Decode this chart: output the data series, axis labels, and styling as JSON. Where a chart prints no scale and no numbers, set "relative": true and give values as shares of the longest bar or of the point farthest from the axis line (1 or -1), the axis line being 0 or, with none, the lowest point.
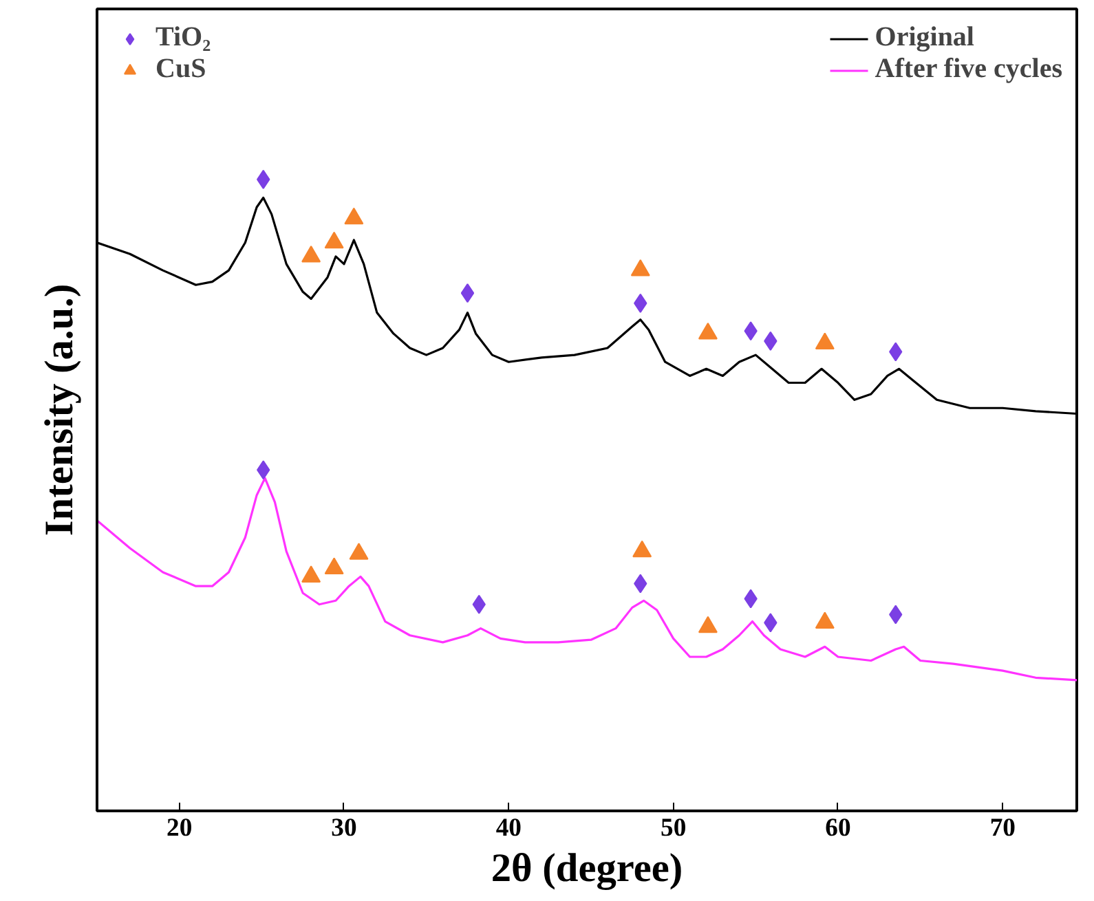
{
  "chart_data": {
    "type": "line",
    "xlabel": "2θ (degree)",
    "ylabel": "Intensity (a.u.)",
    "relative": true,
    "xlim": [
      15,
      74.5
    ],
    "xticks": [
      20,
      30,
      40,
      50,
      60,
      70
    ],
    "grid": false,
    "legend": "top",
    "series": [
      {
        "name": "Original",
        "color": "#000000",
        "x": [
          15,
          17,
          19,
          21,
          22,
          23,
          24,
          24.7,
          25.1,
          25.6,
          26.5,
          27.5,
          28,
          29,
          29.5,
          30,
          30.6,
          31.2,
          32,
          33,
          34,
          35,
          36,
          37,
          37.5,
          38,
          39,
          40,
          42,
          44,
          46,
          47.5,
          48,
          48.5,
          49.5,
          51,
          52,
          53,
          54,
          55,
          56,
          57,
          58,
          59,
          60,
          61,
          62,
          63,
          63.7,
          64.5,
          66,
          68,
          70,
          72,
          74.5
        ],
        "values": [
          0.9,
          0.882,
          0.856,
          0.833,
          0.838,
          0.856,
          0.9,
          0.956,
          0.971,
          0.945,
          0.866,
          0.822,
          0.811,
          0.845,
          0.878,
          0.866,
          0.904,
          0.866,
          0.789,
          0.756,
          0.733,
          0.722,
          0.733,
          0.762,
          0.789,
          0.756,
          0.722,
          0.711,
          0.718,
          0.722,
          0.733,
          0.767,
          0.778,
          0.762,
          0.711,
          0.689,
          0.7,
          0.689,
          0.711,
          0.722,
          0.7,
          0.678,
          0.678,
          0.7,
          0.678,
          0.651,
          0.66,
          0.689,
          0.7,
          0.683,
          0.651,
          0.638,
          0.638,
          0.633,
          0.629
        ]
      },
      {
        "name": "After five cycles",
        "color": "#ff33ff",
        "x": [
          15,
          17,
          19,
          21,
          22,
          23,
          24,
          24.7,
          25.2,
          25.8,
          26.5,
          27.5,
          28.5,
          29.5,
          30.3,
          31,
          31.5,
          32.5,
          34,
          36,
          37.5,
          38.3,
          39.5,
          41,
          43,
          45,
          46.5,
          47.5,
          48.2,
          49,
          50,
          51,
          52,
          53,
          54,
          54.8,
          55.5,
          56.5,
          58,
          59.2,
          60,
          62,
          63.5,
          64,
          65,
          67,
          70,
          72,
          74.5
        ],
        "values": [
          0.46,
          0.416,
          0.378,
          0.356,
          0.356,
          0.378,
          0.433,
          0.5,
          0.527,
          0.489,
          0.411,
          0.345,
          0.327,
          0.333,
          0.356,
          0.371,
          0.356,
          0.3,
          0.278,
          0.267,
          0.278,
          0.289,
          0.273,
          0.267,
          0.267,
          0.271,
          0.289,
          0.322,
          0.333,
          0.318,
          0.273,
          0.244,
          0.244,
          0.256,
          0.278,
          0.3,
          0.278,
          0.256,
          0.244,
          0.26,
          0.244,
          0.238,
          0.256,
          0.26,
          0.238,
          0.233,
          0.222,
          0.211,
          0.207
        ]
      },
      {
        "name": "TiO₂",
        "color": "#7b3fe4",
        "type": "scatter",
        "marker": "diamond",
        "x": [
          25.1,
          37.5,
          48,
          54.7,
          55.9,
          63.5,
          25.1,
          38.2,
          48,
          54.7,
          55.9,
          63.5
        ],
        "values": [
          1.0,
          0.82,
          0.804,
          0.76,
          0.744,
          0.727,
          0.54,
          0.327,
          0.36,
          0.336,
          0.298,
          0.311
        ]
      },
      {
        "name": "CuS",
        "color": "#f5832a",
        "type": "scatter",
        "marker": "triangle",
        "x": [
          28,
          29.4,
          30.6,
          48,
          52.1,
          59.2,
          28,
          29.4,
          30.9,
          48.1,
          52.1,
          59.2
        ],
        "values": [
          0.878,
          0.9,
          0.938,
          0.856,
          0.756,
          0.74,
          0.371,
          0.384,
          0.407,
          0.411,
          0.291,
          0.298
        ]
      }
    ]
  }
}
